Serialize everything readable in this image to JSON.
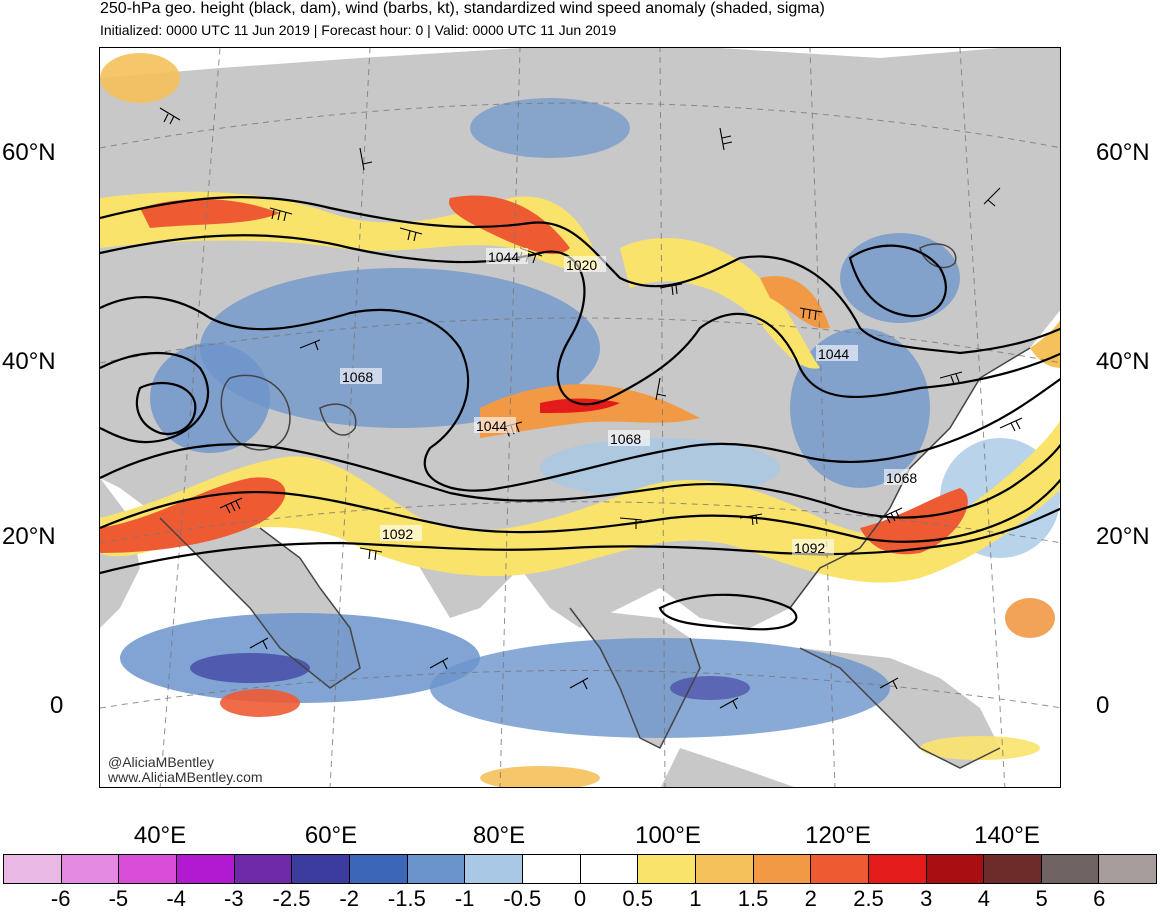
{
  "header": {
    "title": "250-hPa geo. height (black, dam), wind (barbs, kt), standardized wind speed anomaly (shaded, sigma)",
    "subtitle": "Initialized: 0000 UTC 11 Jun 2019 | Forecast hour: 0 | Valid: 0000 UTC 11 Jun 2019"
  },
  "axes": {
    "lat_left": [
      "60°N",
      "40°N",
      "20°N",
      "0"
    ],
    "lat_right": [
      "60°N",
      "40°N",
      "20°N",
      "0"
    ],
    "lon": [
      "40°E",
      "60°E",
      "80°E",
      "100°E",
      "120°E",
      "140°E"
    ]
  },
  "contour_labels": [
    "1044",
    "1020",
    "1068",
    "1044",
    "1044",
    "1068",
    "1068",
    "1092",
    "1092"
  ],
  "credit": {
    "handle": "@AliciaMBentley",
    "site": "www.AliciaMBentley.com"
  },
  "colorbar": {
    "labels": [
      "-6",
      "-5",
      "-4",
      "-3",
      "-2.5",
      "-2",
      "-1.5",
      "-1",
      "-0.5",
      "0",
      "0.5",
      "1",
      "1.5",
      "2",
      "2.5",
      "3",
      "4",
      "5",
      "6"
    ],
    "colors": [
      "#e9b8e5",
      "#e58ae2",
      "#d94ed8",
      "#b11ad0",
      "#6e2aa8",
      "#3c3b9e",
      "#3c66b8",
      "#6b94cc",
      "#a8c8e6",
      "#ffffff",
      "#ffffff",
      "#f9e36b",
      "#f5c15a",
      "#f29946",
      "#ee5b33",
      "#e31b1b",
      "#a80f12",
      "#6d2b29",
      "#6f6463",
      "#a69c9c"
    ]
  },
  "map": {
    "land_color": "#c8c8c8",
    "ocean_color": "#ffffff",
    "coast_color": "#444444",
    "contour_color": "#000000",
    "grid_color": "#777777"
  }
}
